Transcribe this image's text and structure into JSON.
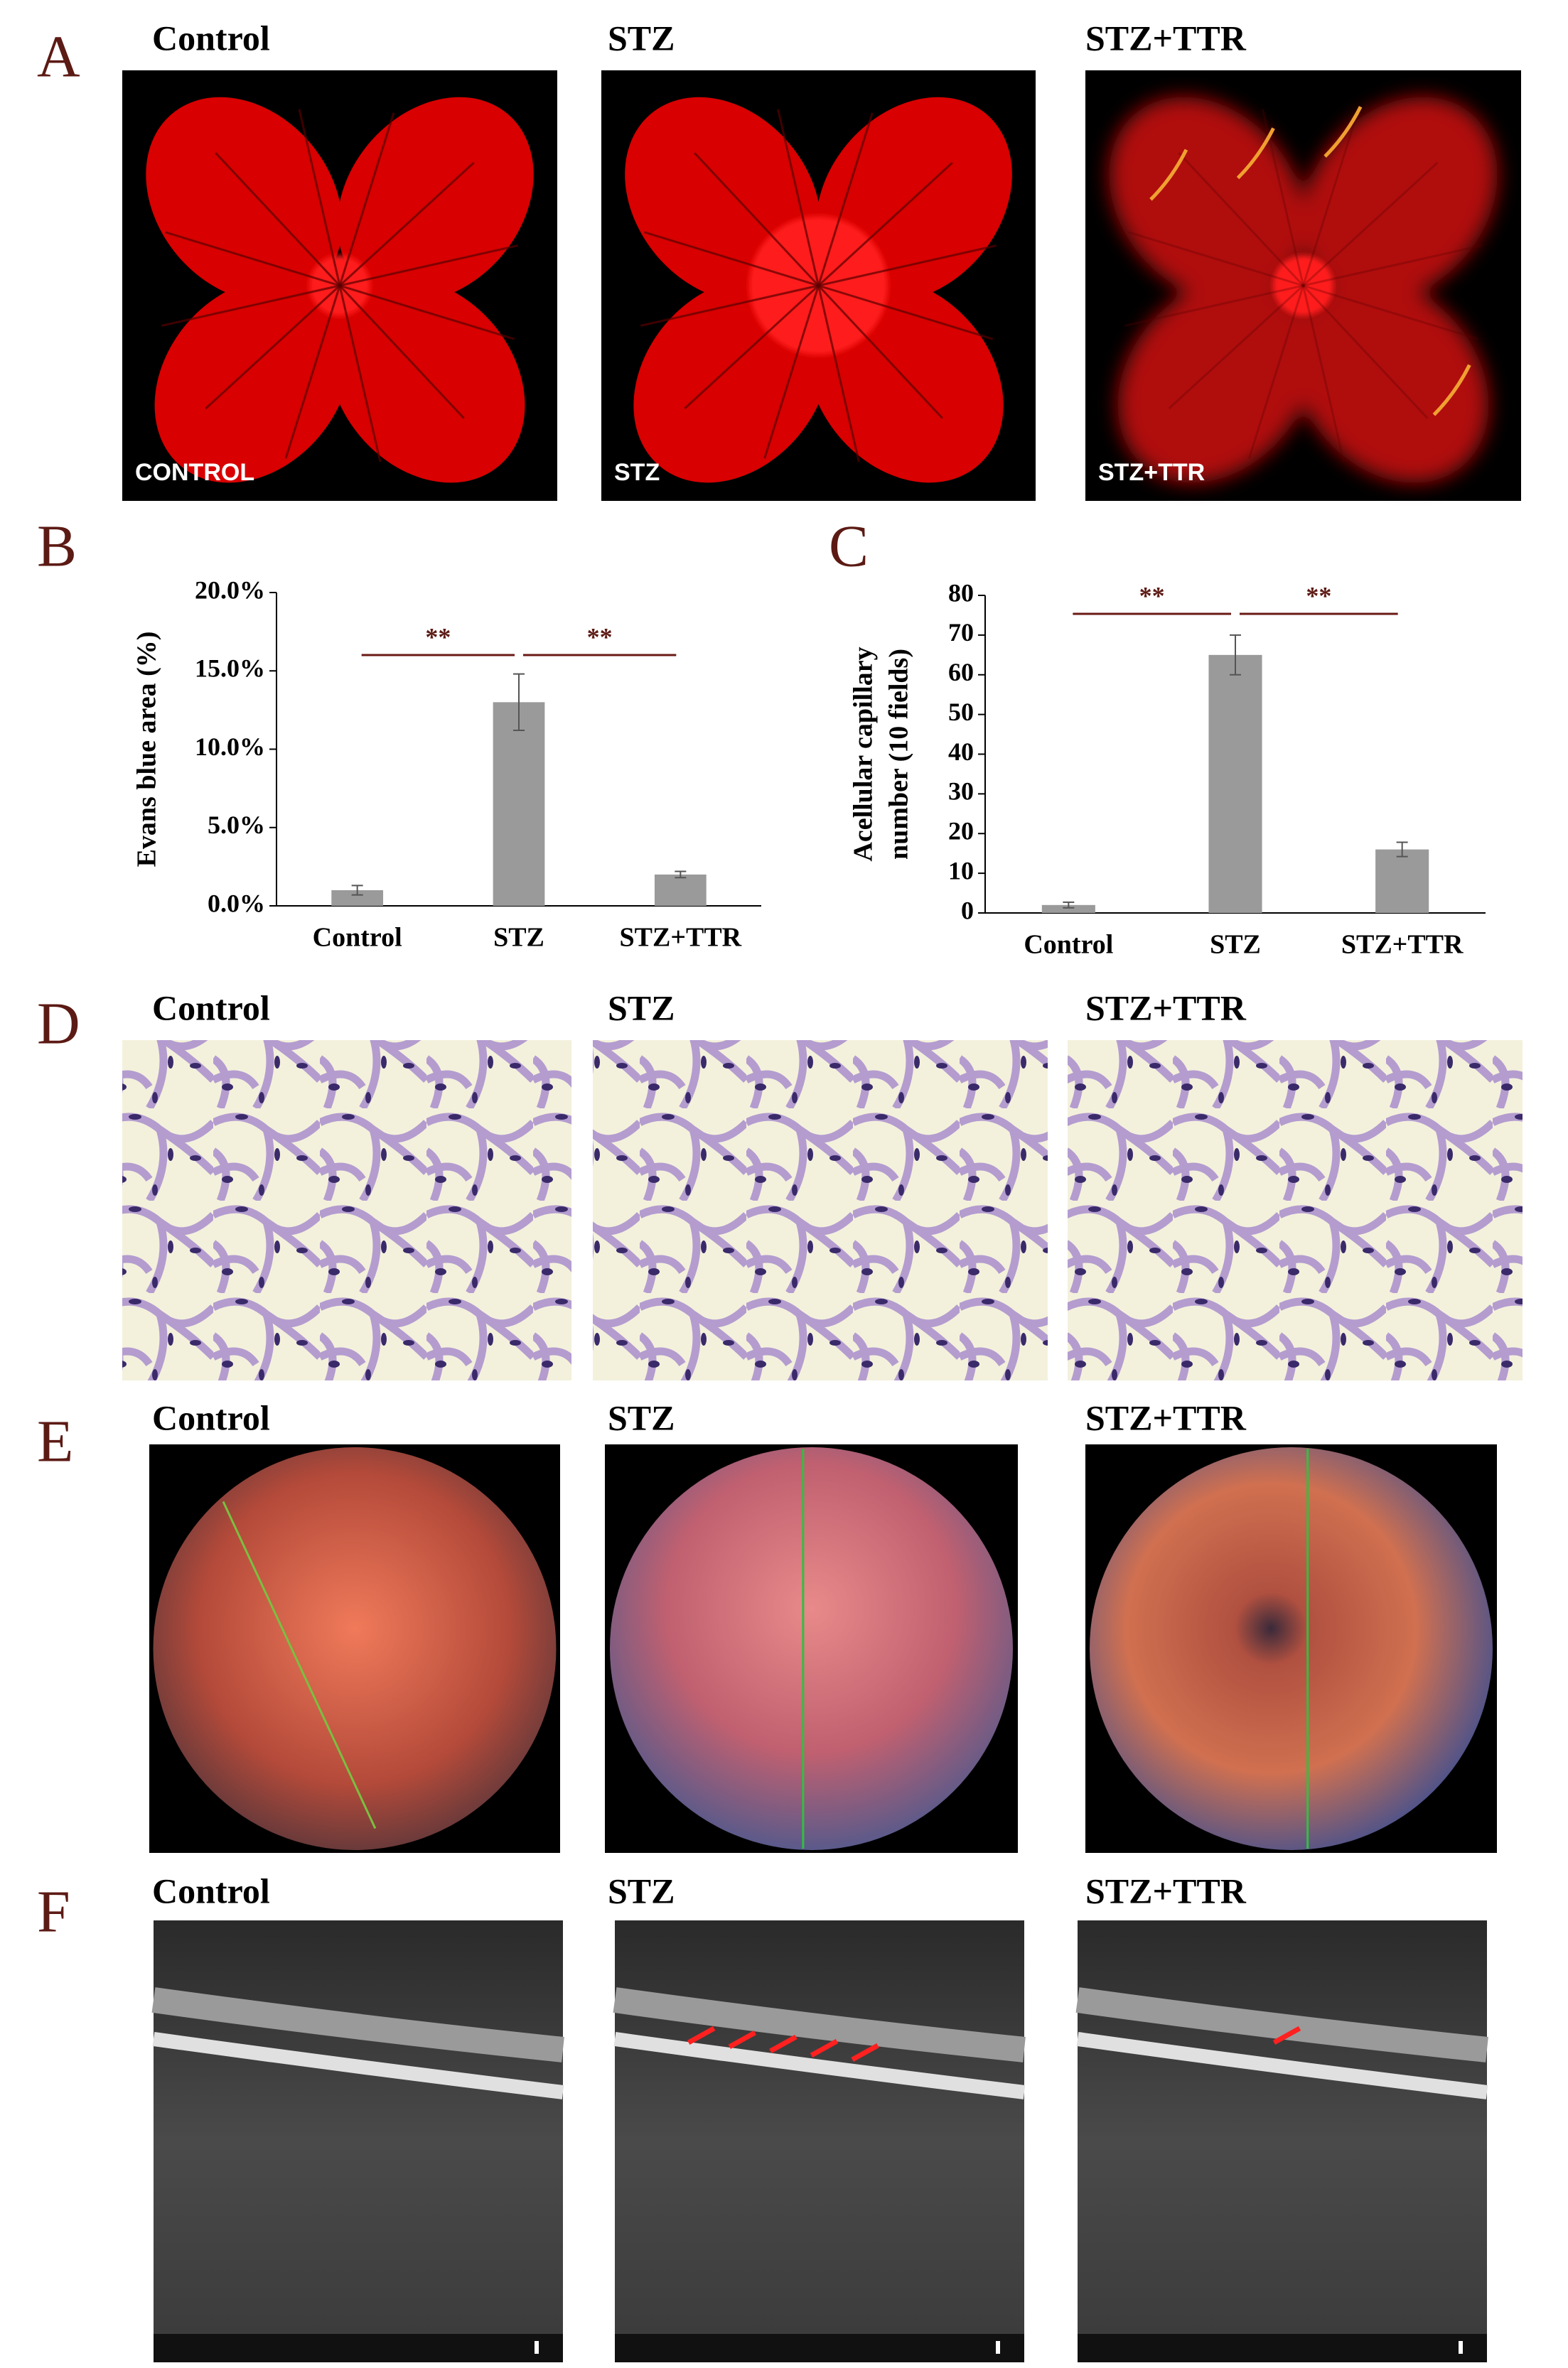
{
  "panels": [
    {
      "letter": "A",
      "groups": [
        "Control",
        "STZ",
        "STZ+TTR"
      ],
      "captions": [
        "CONTROL",
        "STZ",
        "STZ+TTR"
      ]
    },
    {
      "letter": "D",
      "groups": [
        "Control",
        "STZ",
        "STZ+TTR"
      ]
    },
    {
      "letter": "E",
      "groups": [
        "Control",
        "STZ",
        "STZ+TTR"
      ]
    },
    {
      "letter": "F",
      "groups": [
        "Control",
        "STZ",
        "STZ+TTR"
      ]
    }
  ],
  "chart_data": [
    {
      "type": "bar",
      "letter": "B",
      "ylabel": [
        "Evans blue area (%)"
      ],
      "categories": [
        "Control",
        "STZ",
        "STZ+TTR"
      ],
      "values": [
        1.0,
        13.0,
        2.0
      ],
      "errors": [
        0.3,
        1.8,
        0.2
      ],
      "color": "#9a9a9a",
      "ylim": [
        0,
        20
      ],
      "yticks": [
        {
          "value": 0,
          "label": "0.0%"
        },
        {
          "value": 5,
          "label": "5.0%"
        },
        {
          "value": 10,
          "label": "10.0%"
        },
        {
          "value": 15,
          "label": "15.0%"
        },
        {
          "value": 20,
          "label": "20.0%"
        }
      ],
      "annotations": [
        "**",
        "**"
      ]
    },
    {
      "type": "bar",
      "letter": "C",
      "ylabel": [
        "Acellular capillary",
        "number (10 fields)"
      ],
      "categories": [
        "Control",
        "STZ",
        "STZ+TTR"
      ],
      "values": [
        2,
        65,
        16
      ],
      "errors": [
        0.7,
        5,
        1.8
      ],
      "color": "#9a9a9a",
      "ylim": [
        0,
        80
      ],
      "yticks": [
        0,
        10,
        20,
        30,
        40,
        50,
        60,
        70,
        80
      ],
      "annotations": [
        "**",
        "**"
      ]
    }
  ]
}
